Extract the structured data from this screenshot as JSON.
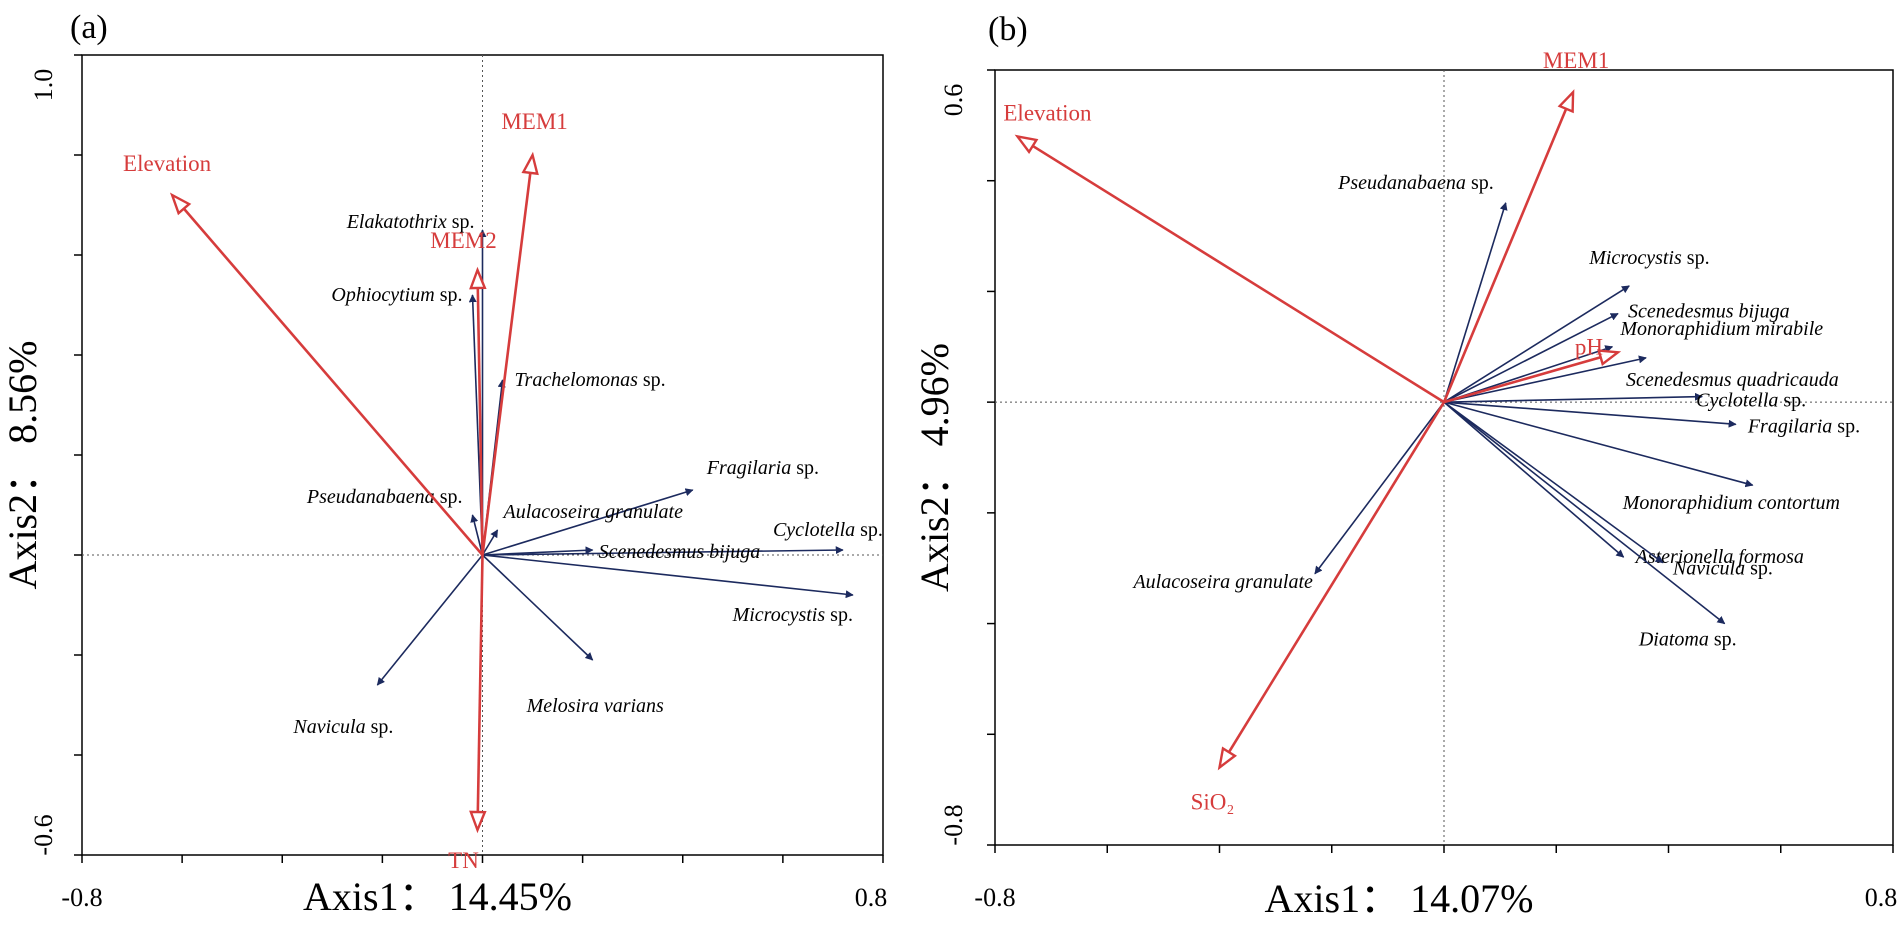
{
  "chart_data": [
    {
      "type": "biplot",
      "panel_label": "(a)",
      "xlabel": "Axis1： 14.45%",
      "ylabel": "Axis2： 8.56%",
      "xlim": [
        -0.8,
        0.8
      ],
      "ylim": [
        -0.6,
        1.0
      ],
      "x_tick_labels": [
        "-0.8",
        "0.8"
      ],
      "y_tick_labels": [
        "1.0",
        "-0.6"
      ],
      "environmental_vectors": [
        {
          "label": "Elevation",
          "x": -0.62,
          "y": 0.72
        },
        {
          "label": "MEM1",
          "x": 0.1,
          "y": 0.8
        },
        {
          "label": "MEM2",
          "x": -0.01,
          "y": 0.57
        },
        {
          "label": "TN",
          "x": -0.01,
          "y": -0.55
        }
      ],
      "species_vectors": [
        {
          "italic": "Elakatothrix",
          "suffix": " sp.",
          "x": 0.0,
          "y": 0.65
        },
        {
          "italic": "Ophiocytium",
          "suffix": " sp.",
          "x": -0.02,
          "y": 0.52
        },
        {
          "italic": "Trachelomonas",
          "suffix": " sp.",
          "x": 0.04,
          "y": 0.35
        },
        {
          "italic": "Fragilaria",
          "suffix": " sp.",
          "x": 0.42,
          "y": 0.13
        },
        {
          "italic": "Pseudanabaena",
          "suffix": " sp.",
          "x": -0.02,
          "y": 0.08
        },
        {
          "italic": "Aulacoseira granulate",
          "suffix": "",
          "x": 0.03,
          "y": 0.05
        },
        {
          "italic": "Cyclotella",
          "suffix": " sp.",
          "x": 0.72,
          "y": 0.01
        },
        {
          "italic": "Scenedesmus bijuga",
          "suffix": "",
          "x": 0.22,
          "y": 0.01
        },
        {
          "italic": "Microcystis",
          "suffix": " sp.",
          "x": 0.74,
          "y": -0.08
        },
        {
          "italic": "Melosira varians",
          "suffix": "",
          "x": 0.22,
          "y": -0.21
        },
        {
          "italic": "Navicula",
          "suffix": " sp.",
          "x": -0.21,
          "y": -0.26
        }
      ]
    },
    {
      "type": "biplot",
      "panel_label": "(b)",
      "xlabel": "Axis1： 14.07%",
      "ylabel": "Axis2： 4.96%",
      "xlim": [
        -0.8,
        0.8
      ],
      "ylim": [
        -0.8,
        0.6
      ],
      "x_tick_labels": [
        "-0.8",
        "0.8"
      ],
      "y_tick_labels": [
        "0.6",
        "-0.8"
      ],
      "environmental_vectors": [
        {
          "label": "Elevation",
          "x": -0.76,
          "y": 0.48
        },
        {
          "label": "MEM1",
          "x": 0.23,
          "y": 0.56
        },
        {
          "label": "pH",
          "x": 0.31,
          "y": 0.09
        },
        {
          "label": "SiO₂",
          "x": -0.4,
          "y": -0.66
        }
      ],
      "species_vectors": [
        {
          "italic": "Pseudanabaena",
          "suffix": " sp.",
          "x": 0.11,
          "y": 0.36
        },
        {
          "italic": "Microcystis",
          "suffix": " sp.",
          "x": 0.33,
          "y": 0.21
        },
        {
          "italic": "Scenedesmus bijuga",
          "suffix": "",
          "x": 0.31,
          "y": 0.16
        },
        {
          "italic": "Monoraphidium mirabile",
          "suffix": "",
          "x": 0.3,
          "y": 0.1
        },
        {
          "italic": "Scenedesmus quadricauda",
          "suffix": "",
          "x": 0.36,
          "y": 0.08
        },
        {
          "italic": "Cyclotella",
          "suffix": " sp.",
          "x": 0.46,
          "y": 0.01
        },
        {
          "italic": "Fragilaria",
          "suffix": " sp.",
          "x": 0.52,
          "y": -0.04
        },
        {
          "italic": "Monoraphidium contortum",
          "suffix": "",
          "x": 0.55,
          "y": -0.15
        },
        {
          "italic": "Asterionella formosa",
          "suffix": "",
          "x": 0.32,
          "y": -0.28
        },
        {
          "italic": "Navicula",
          "suffix": " sp.",
          "x": 0.39,
          "y": -0.29
        },
        {
          "italic": "Diatoma",
          "suffix": " sp.",
          "x": 0.5,
          "y": -0.4
        },
        {
          "italic": "Aulacoseira granulate",
          "suffix": "",
          "x": -0.23,
          "y": -0.31
        }
      ]
    }
  ]
}
